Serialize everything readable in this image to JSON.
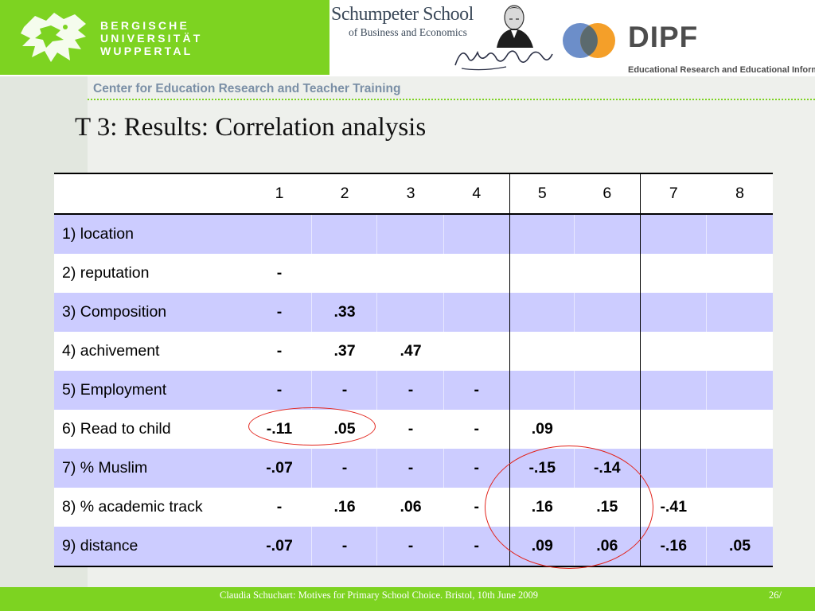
{
  "header": {
    "university_lines": [
      "BERGISCHE",
      "UNIVERSITÄT",
      "WUPPERTAL"
    ],
    "schumpeter_title": "Schumpeter School",
    "schumpeter_subtitle": "of Business and Economics",
    "dipf_title": "DIPF",
    "dipf_subtitle": "Educational Research and Educational Information"
  },
  "subheader": "Center for Education Research and Teacher Training",
  "title": "T 3: Results: Correlation analysis",
  "table": {
    "columns": [
      "1",
      "2",
      "3",
      "4",
      "5",
      "6",
      "7",
      "8"
    ],
    "rows": [
      {
        "label": "1) location",
        "values": [
          "",
          "",
          "",
          "",
          "",
          "",
          "",
          ""
        ]
      },
      {
        "label": "2) reputation",
        "values": [
          "-",
          "",
          "",
          "",
          "",
          "",
          "",
          ""
        ]
      },
      {
        "label": "3) Composition",
        "values": [
          "-",
          ".33",
          "",
          "",
          "",
          "",
          "",
          ""
        ]
      },
      {
        "label": "4) achivement",
        "values": [
          "-",
          ".37",
          ".47",
          "",
          "",
          "",
          "",
          ""
        ]
      },
      {
        "label": "5) Employment",
        "values": [
          "-",
          "-",
          "-",
          "-",
          "",
          "",
          "",
          ""
        ]
      },
      {
        "label": "6) Read to child",
        "values": [
          "-.11",
          ".05",
          "-",
          "-",
          ".09",
          "",
          "",
          ""
        ]
      },
      {
        "label": "7) % Muslim",
        "values": [
          "-.07",
          "-",
          "-",
          "-",
          "-.15",
          "-.14",
          "",
          ""
        ]
      },
      {
        "label": "8) % academic track",
        "values": [
          "-",
          ".16",
          ".06",
          "-",
          ".16",
          ".15",
          "-.41",
          ""
        ]
      },
      {
        "label": "9) distance",
        "values": [
          "-.07",
          "-",
          "-",
          "-",
          ".09",
          ".06",
          "-.16",
          ".05"
        ]
      }
    ]
  },
  "footer": {
    "text": "Claudia Schuchart: Motives for Primary School Choice.  Bristol, 10th June 2009",
    "page": "26/"
  },
  "colors": {
    "brand_green": "#7dd321",
    "row_highlight": "#ccccff",
    "annotation_red": "#e2241c",
    "dipf_blue": "#6c8ec9",
    "dipf_orange": "#f39a1e"
  }
}
